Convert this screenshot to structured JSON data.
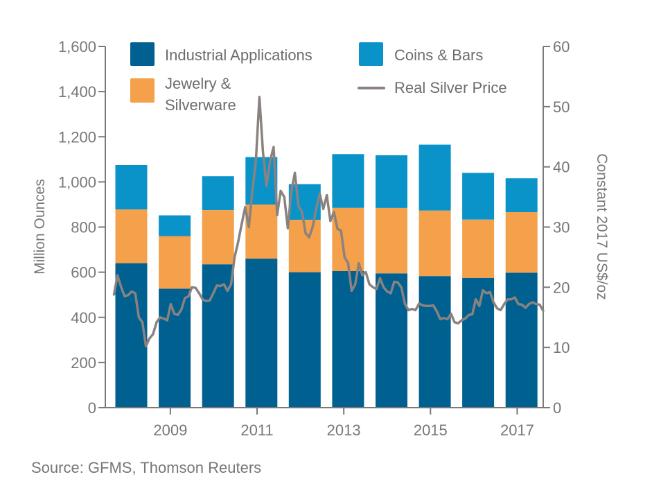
{
  "colors": {
    "industrial": "#00608f",
    "jewelry": "#f5a04a",
    "coins": "#0a93c9",
    "price": "#8a8280",
    "axis": "#7a7a7a"
  },
  "source": "Source: GFMS, Thomson Reuters",
  "chart_data": {
    "type": "bar",
    "stacked": true,
    "categories": [
      "2008",
      "2009",
      "2010",
      "2011",
      "2012",
      "2013",
      "2014",
      "2015",
      "2016",
      "2017"
    ],
    "x_tick_labels": [
      "2009",
      "2011",
      "2013",
      "2015",
      "2017"
    ],
    "series": [
      {
        "name": "Industrial Applications",
        "color_key": "industrial",
        "values": [
          640,
          527,
          635,
          660,
          600,
          605,
          595,
          583,
          575,
          598
        ]
      },
      {
        "name": "Jewelry & Silverware",
        "color_key": "jewelry",
        "values": [
          238,
          233,
          240,
          240,
          232,
          280,
          290,
          290,
          258,
          268
        ]
      },
      {
        "name": "Coins & Bars",
        "color_key": "coins",
        "values": [
          197,
          92,
          150,
          210,
          158,
          238,
          233,
          292,
          207,
          150
        ]
      }
    ],
    "legend": [
      "Industrial Applications",
      "Coins & Bars",
      "Jewelry &",
      "Silverware",
      "Real Silver Price"
    ],
    "ylabel": "Million Ounces",
    "ylim": [
      0,
      1600
    ],
    "yticks": [
      "0",
      "200",
      "400",
      "600",
      "800",
      "1,000",
      "1,200",
      "1,400",
      "1,600"
    ],
    "y2label": "Constant 2017 US$/oz",
    "y2lim": [
      0,
      60
    ],
    "y2ticks": [
      "0",
      "10",
      "20",
      "30",
      "40",
      "50",
      "60"
    ],
    "line_series": {
      "name": "Real Silver Price",
      "x_start": 2007.7,
      "x_end": 2017.6,
      "values": [
        18.8,
        22,
        20,
        18.5,
        18.7,
        19.3,
        19,
        15,
        14.2,
        10.2,
        11.5,
        12.2,
        14.2,
        15,
        14.8,
        14.5,
        17.2,
        15.6,
        15.4,
        16.3,
        18.2,
        18.5,
        20,
        19.9,
        19,
        18,
        17.7,
        17.8,
        19,
        20.3,
        20.2,
        20.5,
        19.4,
        20.5,
        25,
        27.5,
        30.5,
        33.3,
        30,
        36,
        41,
        51.6,
        42.5,
        36.8,
        41,
        43.3,
        32,
        36,
        35,
        29.8,
        36,
        39,
        33.5,
        32.5,
        29,
        28.3,
        30,
        33,
        35.5,
        33,
        35.3,
        31,
        32.5,
        29.7,
        29.4,
        25,
        24,
        19.4,
        20.5,
        24,
        22,
        22.5,
        20.5,
        20,
        19.7,
        21.5,
        20,
        19.3,
        19,
        20.9,
        20.8,
        20,
        17.3,
        16.2,
        16.4,
        16.2,
        17.3,
        17,
        16.9,
        16.9,
        17,
        16,
        14.7,
        14.9,
        14.7,
        15.6,
        14.2,
        14,
        14.5,
        14.8,
        15.4,
        15.5,
        18,
        16.9,
        19.5,
        19,
        19.2,
        17.5,
        16.5,
        16.2,
        17.2,
        18,
        18,
        18.3,
        17.2,
        17.1,
        16.6,
        17.2,
        17.5,
        17.2,
        17.1,
        16.1
      ]
    },
    "grid": false,
    "legend_position": "top"
  }
}
